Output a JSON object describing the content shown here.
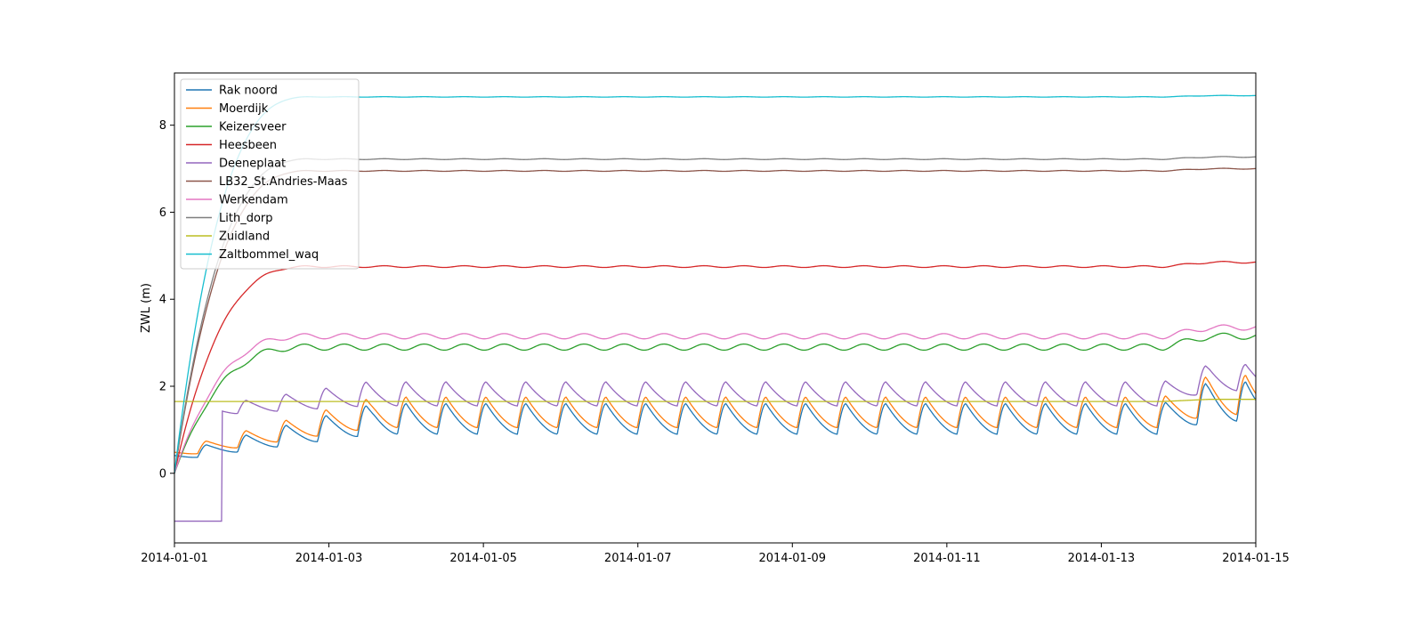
{
  "chart_data": {
    "type": "line",
    "title": "",
    "xlabel": "",
    "ylabel": "ZWL (m)",
    "xlim": [
      "2014-01-01",
      "2014-01-15"
    ],
    "ylim": [
      -1.6,
      9.2
    ],
    "xticks": [
      "2014-01-01",
      "2014-01-03",
      "2014-01-05",
      "2014-01-07",
      "2014-01-09",
      "2014-01-11",
      "2014-01-13",
      "2014-01-15"
    ],
    "yticks": [
      0,
      2,
      4,
      6,
      8
    ],
    "grid": false,
    "legend_position": "upper-left",
    "series": [
      {
        "name": "Rak noord",
        "color": "#1f77b4",
        "kind": "tidal",
        "start": [
          0.1,
          0.4
        ],
        "ramp_day": 2.6,
        "base_low": 0.9,
        "base_high": 1.6,
        "late_low": 1.2,
        "late_high": 2.1
      },
      {
        "name": "Moerdijk",
        "color": "#ff7f0e",
        "kind": "tidal",
        "start": [
          0.15,
          0.5
        ],
        "ramp_day": 2.6,
        "base_low": 1.05,
        "base_high": 1.75,
        "late_low": 1.35,
        "late_high": 2.25
      },
      {
        "name": "Keizersveer",
        "color": "#2ca02c",
        "kind": "smooth",
        "level": 2.9,
        "amp": 0.07,
        "late_level": 3.15
      },
      {
        "name": "Heesbeen",
        "color": "#d62728",
        "kind": "smooth",
        "level": 4.75,
        "amp": 0.02,
        "late_level": 4.85
      },
      {
        "name": "Deeneplaat",
        "color": "#9467bd",
        "kind": "tidal",
        "start": [
          1.2,
          1.3
        ],
        "ramp_day": 2.5,
        "base_low": 1.55,
        "base_high": 2.1,
        "late_low": 1.9,
        "late_high": 2.5,
        "initial_offset": -1.1
      },
      {
        "name": "LB32_St.Andries-Maas",
        "color": "#8c564b",
        "kind": "smooth",
        "level": 6.95,
        "amp": 0.01,
        "late_level": 7.0
      },
      {
        "name": "Werkendam",
        "color": "#e377c2",
        "kind": "smooth",
        "level": 3.15,
        "amp": 0.06,
        "late_level": 3.35
      },
      {
        "name": "Lith_dorp",
        "color": "#7f7f7f",
        "kind": "smooth",
        "level": 7.22,
        "amp": 0.01,
        "late_level": 7.27
      },
      {
        "name": "Zuidland",
        "color": "#bcbd22",
        "kind": "flat",
        "level": 1.65,
        "late_level": 1.7
      },
      {
        "name": "Zaltbommel_waq",
        "color": "#17becf",
        "kind": "smooth",
        "level": 8.65,
        "amp": 0.005,
        "late_level": 8.68
      }
    ]
  }
}
